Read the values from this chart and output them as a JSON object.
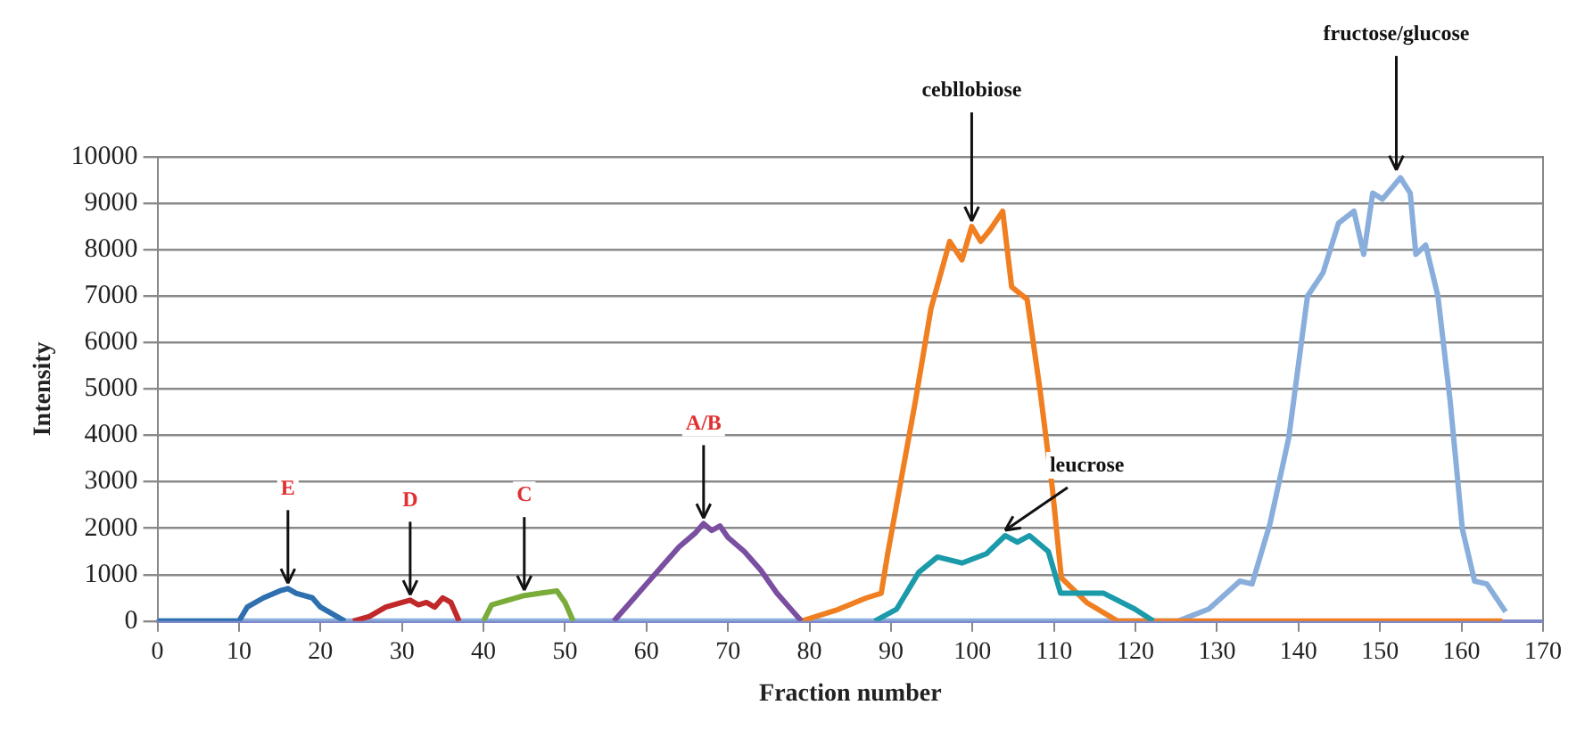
{
  "chart_data": {
    "type": "line",
    "xlabel": "Fraction number",
    "ylabel": "Intensity",
    "xlim": [
      0,
      170
    ],
    "xticks": [
      0,
      10,
      20,
      30,
      40,
      50,
      60,
      70,
      80,
      90,
      100,
      110,
      120,
      130,
      140,
      150,
      160,
      170
    ],
    "ylim": [
      0,
      10000
    ],
    "yticks": [
      0,
      1000,
      2000,
      3000,
      4000,
      5000,
      6000,
      7000,
      8000,
      9000,
      10000
    ],
    "grid": "y",
    "legend": false,
    "marker": "none",
    "line_style": "solid",
    "series": [
      {
        "color": "#2e6fb0",
        "x": [
          0,
          10,
          11,
          13,
          15,
          16,
          17,
          19,
          20,
          22,
          23
        ],
        "values": [
          0,
          0,
          300,
          500,
          650,
          700,
          600,
          500,
          300,
          100,
          0
        ]
      },
      {
        "color": "#c0282a",
        "x": [
          24,
          26,
          28,
          30,
          31,
          32,
          33,
          34,
          35,
          36,
          37
        ],
        "values": [
          0,
          100,
          300,
          400,
          450,
          350,
          400,
          300,
          500,
          400,
          0
        ]
      },
      {
        "color": "#7aac3a",
        "x": [
          40,
          41,
          43,
          45,
          47,
          49,
          50,
          51
        ],
        "values": [
          0,
          350,
          450,
          550,
          600,
          650,
          400,
          0
        ]
      },
      {
        "color": "#7a4ea0",
        "x": [
          56,
          58,
          60,
          62,
          64,
          66,
          67,
          68,
          69,
          70,
          72,
          74,
          76,
          78,
          79
        ],
        "values": [
          0,
          400,
          800,
          1200,
          1600,
          1900,
          2100,
          1950,
          2050,
          1800,
          1500,
          1100,
          600,
          200,
          0
        ]
      },
      {
        "color": "#1b9aaa",
        "x": [
          88,
          90.7,
          93.4,
          95.7,
          98.7,
          101.7,
          104,
          105.5,
          107,
          109.3,
          110.8,
          112.3,
          116.1,
          119.9,
          122.2
        ],
        "values": [
          0,
          260,
          1050,
          1380,
          1250,
          1450,
          1840,
          1700,
          1840,
          1500,
          600,
          600,
          600,
          260,
          0
        ]
      },
      {
        "color": "#f07f22",
        "x": [
          79,
          83.5,
          87,
          88.8,
          89.6,
          93,
          94.9,
          97.2,
          98.7,
          99.9,
          101,
          102.2,
          103.7,
          104.8,
          106.7,
          108.3,
          109.8,
          110.9,
          114,
          117.8,
          165
        ],
        "values": [
          0,
          250,
          500,
          600,
          1460,
          4750,
          6730,
          8180,
          7780,
          8500,
          8180,
          8440,
          8830,
          7200,
          6930,
          4950,
          2850,
          930,
          400,
          0,
          0
        ]
      },
      {
        "color": "#8aaedb",
        "x": [
          0,
          125.2,
          129,
          132.8,
          134.3,
          136.5,
          138.8,
          141.1,
          143,
          144.9,
          146.8,
          148,
          149.1,
          150.3,
          152.5,
          153.7,
          154.4,
          155.6,
          157.1,
          158.6,
          160.1,
          161.6,
          163.1,
          165.4
        ],
        "values": [
          0,
          0,
          260,
          860,
          800,
          2100,
          3950,
          7000,
          7500,
          8570,
          8830,
          7900,
          9220,
          9090,
          9550,
          9220,
          7900,
          8100,
          7000,
          4740,
          1980,
          860,
          800,
          200
        ]
      }
    ],
    "annotations": [
      {
        "text": "E",
        "x": 16,
        "y": 700
      },
      {
        "text": "D",
        "x": 31,
        "y": 450
      },
      {
        "text": "C",
        "x": 45,
        "y": 550
      },
      {
        "text": "A/B",
        "x": 67,
        "y": 2100
      },
      {
        "text": "cebllobiose",
        "x": 99.9,
        "y": 8500
      },
      {
        "text": "leucrose",
        "x": 104,
        "y": 1840
      },
      {
        "text": "fructose/glucose",
        "x": 152,
        "y": 9600
      }
    ]
  }
}
